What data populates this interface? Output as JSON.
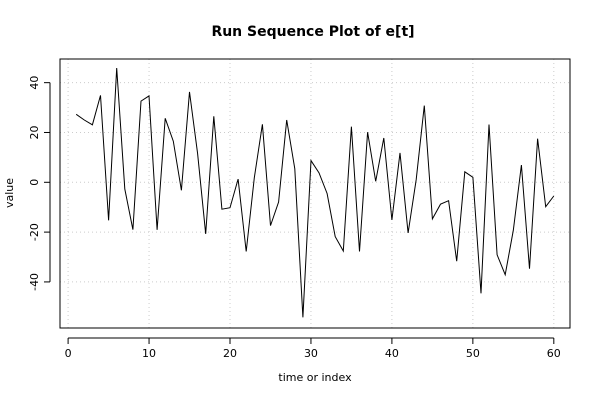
{
  "chart_data": {
    "type": "line",
    "title": "Run Sequence Plot of e[t]",
    "xlabel": "time or index",
    "ylabel": "value",
    "xlim": [
      -1,
      62
    ],
    "ylim": [
      -58.5,
      49.5
    ],
    "x_ticks": [
      0,
      10,
      20,
      30,
      40,
      50,
      60
    ],
    "y_ticks": [
      -40,
      -20,
      0,
      20,
      40
    ],
    "grid": true,
    "line_color": "#000000",
    "series": [
      {
        "x": [
          1,
          2,
          3,
          4,
          5,
          6,
          7,
          8,
          9,
          10,
          11,
          12,
          13,
          14,
          15,
          16,
          17,
          18,
          19,
          20,
          21,
          22,
          23,
          24,
          25,
          26,
          27,
          28,
          29,
          30,
          31,
          32,
          33,
          34,
          35,
          36,
          37,
          38,
          39,
          40,
          41,
          42,
          43,
          44,
          45,
          46,
          47,
          48,
          49,
          50,
          51,
          52,
          53,
          54,
          55,
          56,
          57,
          58,
          59,
          60
        ],
        "values": [
          27.3,
          25.0,
          23.1,
          34.9,
          -15.3,
          45.9,
          -2.7,
          -19.0,
          32.6,
          34.7,
          -19.1,
          25.7,
          16.5,
          -3.2,
          36.3,
          11.5,
          -20.7,
          26.5,
          -10.8,
          -10.2,
          1.3,
          -27.8,
          1.8,
          23.3,
          -17.4,
          -7.9,
          25.0,
          5.4,
          -54.2,
          8.7,
          3.8,
          -4.5,
          -21.8,
          -27.6,
          22.3,
          -27.8,
          20.1,
          0.4,
          17.8,
          -15.1,
          11.8,
          -20.3,
          1.1,
          30.8,
          -14.7,
          -8.8,
          -7.4,
          -31.7,
          4.2,
          2.0,
          -44.6,
          23.2,
          -29.1,
          -37.1,
          -19.3,
          6.9,
          -34.7,
          17.5,
          -9.8,
          -5.5
        ]
      }
    ]
  }
}
